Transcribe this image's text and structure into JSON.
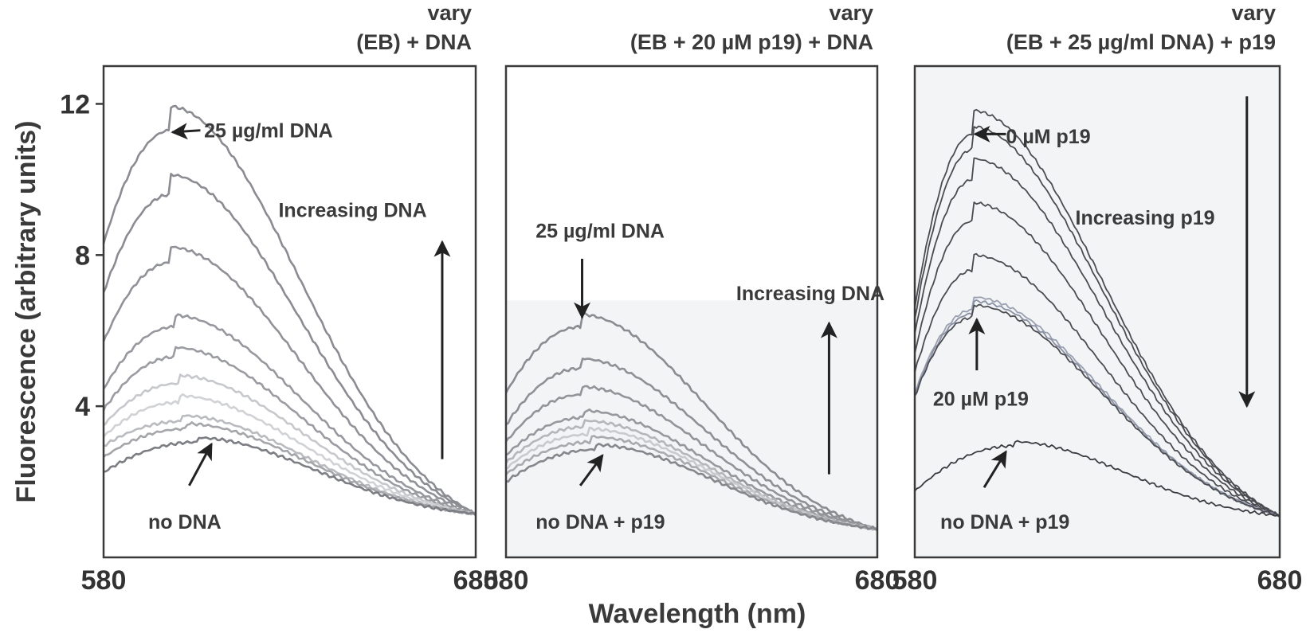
{
  "chart_data": [
    {
      "type": "line",
      "title_lines": [
        "vary",
        "(EB) + DNA"
      ],
      "xlim": [
        580,
        680
      ],
      "ylim": [
        0,
        13
      ],
      "x_ticks": [
        "580",
        "680"
      ],
      "y_ticks": [
        {
          "value": 4,
          "label": "4"
        },
        {
          "value": 8,
          "label": "8"
        },
        {
          "value": 12,
          "label": "12"
        }
      ],
      "ylabel": "Fluorescence (arbitrary units)",
      "shaded_below": null,
      "series": [
        {
          "peak_x": 598,
          "peak_y": 11.3,
          "start_y": 8.3,
          "end_y": 1.15,
          "color": "#8a8c92"
        },
        {
          "peak_x": 598,
          "peak_y": 9.6,
          "start_y": 7.0,
          "end_y": 1.15,
          "color": "#8a8c92"
        },
        {
          "peak_x": 598,
          "peak_y": 7.8,
          "start_y": 5.7,
          "end_y": 1.15,
          "color": "#909298"
        },
        {
          "peak_x": 599,
          "peak_y": 6.1,
          "start_y": 4.45,
          "end_y": 1.15,
          "color": "#96989e"
        },
        {
          "peak_x": 599,
          "peak_y": 5.3,
          "start_y": 3.9,
          "end_y": 1.15,
          "color": "#9a9ca2"
        },
        {
          "peak_x": 600,
          "peak_y": 4.6,
          "start_y": 3.5,
          "end_y": 1.15,
          "color": "#c6c8cc"
        },
        {
          "peak_x": 600,
          "peak_y": 4.1,
          "start_y": 3.2,
          "end_y": 1.15,
          "color": "#d0d2d6"
        },
        {
          "peak_x": 601,
          "peak_y": 3.6,
          "start_y": 2.95,
          "end_y": 1.15,
          "color": "#b9bbbf"
        },
        {
          "peak_x": 602,
          "peak_y": 3.4,
          "start_y": 2.65,
          "end_y": 1.15,
          "color": "#a4a6aa"
        },
        {
          "peak_x": 605,
          "peak_y": 3.05,
          "start_y": 2.25,
          "end_y": 1.15,
          "color": "#7c7e84"
        }
      ],
      "annotations": [
        {
          "text": "25 µg/ml DNA",
          "tx": 607,
          "ty": 11.3,
          "ax0": 606,
          "ay0": 11.3,
          "ax1": 598.5,
          "ay1": 11.25,
          "anchor": "start"
        },
        {
          "text": "Increasing DNA",
          "tx": 627,
          "ty": 9.2,
          "ax0": 671,
          "ay0": 2.6,
          "ax1": 671,
          "ay1": 8.35,
          "anchor": "start"
        },
        {
          "text": "no DNA",
          "tx": 592,
          "ty": 0.95,
          "ax0": 603,
          "ay0": 1.9,
          "ax1": 609,
          "ay1": 3.0,
          "anchor": "start"
        }
      ]
    },
    {
      "type": "line",
      "title_lines": [
        "vary",
        "(EB + 20 µM p19) + DNA"
      ],
      "xlim": [
        580,
        680
      ],
      "ylim": [
        0,
        13
      ],
      "x_ticks": [
        "580",
        "680"
      ],
      "y_ticks": [],
      "ylabel": "",
      "shaded_below": 6.8,
      "series": [
        {
          "peak_x": 600,
          "peak_y": 6.1,
          "start_y": 4.35,
          "end_y": 0.75,
          "color": "#8a8c92"
        },
        {
          "peak_x": 600,
          "peak_y": 5.0,
          "start_y": 3.5,
          "end_y": 0.75,
          "color": "#8e9096"
        },
        {
          "peak_x": 600,
          "peak_y": 4.3,
          "start_y": 3.05,
          "end_y": 0.75,
          "color": "#92949a"
        },
        {
          "peak_x": 601,
          "peak_y": 3.7,
          "start_y": 2.7,
          "end_y": 0.75,
          "color": "#96989e"
        },
        {
          "peak_x": 601,
          "peak_y": 3.45,
          "start_y": 2.5,
          "end_y": 0.75,
          "color": "#b4b6ba"
        },
        {
          "peak_x": 602,
          "peak_y": 3.25,
          "start_y": 2.35,
          "end_y": 0.75,
          "color": "#c8cace"
        },
        {
          "peak_x": 603,
          "peak_y": 3.05,
          "start_y": 2.2,
          "end_y": 0.75,
          "color": "#a8aaae"
        },
        {
          "peak_x": 604,
          "peak_y": 2.85,
          "start_y": 2.0,
          "end_y": 0.75,
          "color": "#85878d"
        }
      ],
      "annotations": [
        {
          "text": "25 µg/ml DNA",
          "tx": 588,
          "ty": 8.65,
          "ax0": 600.5,
          "ay0": 7.9,
          "ax1": 600.5,
          "ay1": 6.35,
          "anchor": "start"
        },
        {
          "text": "Increasing DNA",
          "tx": 642,
          "ty": 7.0,
          "ax0": 667,
          "ay0": 2.2,
          "ax1": 667,
          "ay1": 6.2,
          "anchor": "start"
        },
        {
          "text": "no DNA + p19",
          "tx": 588,
          "ty": 0.95,
          "ax0": 600,
          "ay0": 1.9,
          "ax1": 606,
          "ay1": 2.7,
          "anchor": "start"
        }
      ]
    },
    {
      "type": "line",
      "title_lines": [
        "vary",
        "(EB + 25 µg/ml DNA) + p19"
      ],
      "xlim": [
        580,
        680
      ],
      "ylim": [
        0,
        13
      ],
      "x_ticks": [
        "580",
        "680"
      ],
      "y_ticks": [],
      "ylabel": "",
      "shaded_below": null,
      "series": [
        {
          "peak_x": 596,
          "peak_y": 11.2,
          "start_y": 6.6,
          "end_y": 1.1,
          "color": "#4a4c52"
        },
        {
          "peak_x": 596,
          "peak_y": 10.8,
          "start_y": 6.3,
          "end_y": 1.1,
          "color": "#4a4c52"
        },
        {
          "peak_x": 596,
          "peak_y": 10.0,
          "start_y": 5.9,
          "end_y": 1.1,
          "color": "#4a4c52"
        },
        {
          "peak_x": 596,
          "peak_y": 8.9,
          "start_y": 5.4,
          "end_y": 1.1,
          "color": "#4a4c52"
        },
        {
          "peak_x": 596,
          "peak_y": 7.6,
          "start_y": 4.9,
          "end_y": 1.1,
          "color": "#4a4c52"
        },
        {
          "peak_x": 596,
          "peak_y": 6.55,
          "start_y": 4.35,
          "end_y": 1.1,
          "color": "#9aa0b0"
        },
        {
          "peak_x": 596,
          "peak_y": 6.45,
          "start_y": 4.3,
          "end_y": 1.1,
          "color": "#8890a2"
        },
        {
          "peak_x": 596,
          "peak_y": 6.35,
          "start_y": 4.25,
          "end_y": 1.1,
          "color": "#4a4c52"
        },
        {
          "peak_x": 607,
          "peak_y": 2.95,
          "start_y": 1.75,
          "end_y": 1.1,
          "color": "#3a3c42"
        }
      ],
      "annotations": [
        {
          "text": "0 µM p19",
          "tx": 605,
          "ty": 11.15,
          "ax0": 605,
          "ay0": 11.2,
          "ax1": 596.5,
          "ay1": 11.2,
          "anchor": "start"
        },
        {
          "text": "Increasing p19",
          "tx": 624,
          "ty": 9.0,
          "ax0": 671,
          "ay0": 12.2,
          "ax1": 671,
          "ay1": 4.0,
          "anchor": "start"
        },
        {
          "text": "20 µM p19",
          "tx": 585,
          "ty": 4.2,
          "ax0": 597,
          "ay0": 4.95,
          "ax1": 597,
          "ay1": 6.3,
          "anchor": "start"
        },
        {
          "text": "no DNA + p19",
          "tx": 587,
          "ty": 0.95,
          "ax0": 599,
          "ay0": 1.85,
          "ax1": 605,
          "ay1": 2.8,
          "anchor": "start"
        }
      ]
    }
  ],
  "shared": {
    "xlabel": "Wavelength (nm)"
  },
  "colors": {
    "frame": "#3a3a3a",
    "text": "#3a3a3a",
    "shade": "#f3f4f6"
  }
}
